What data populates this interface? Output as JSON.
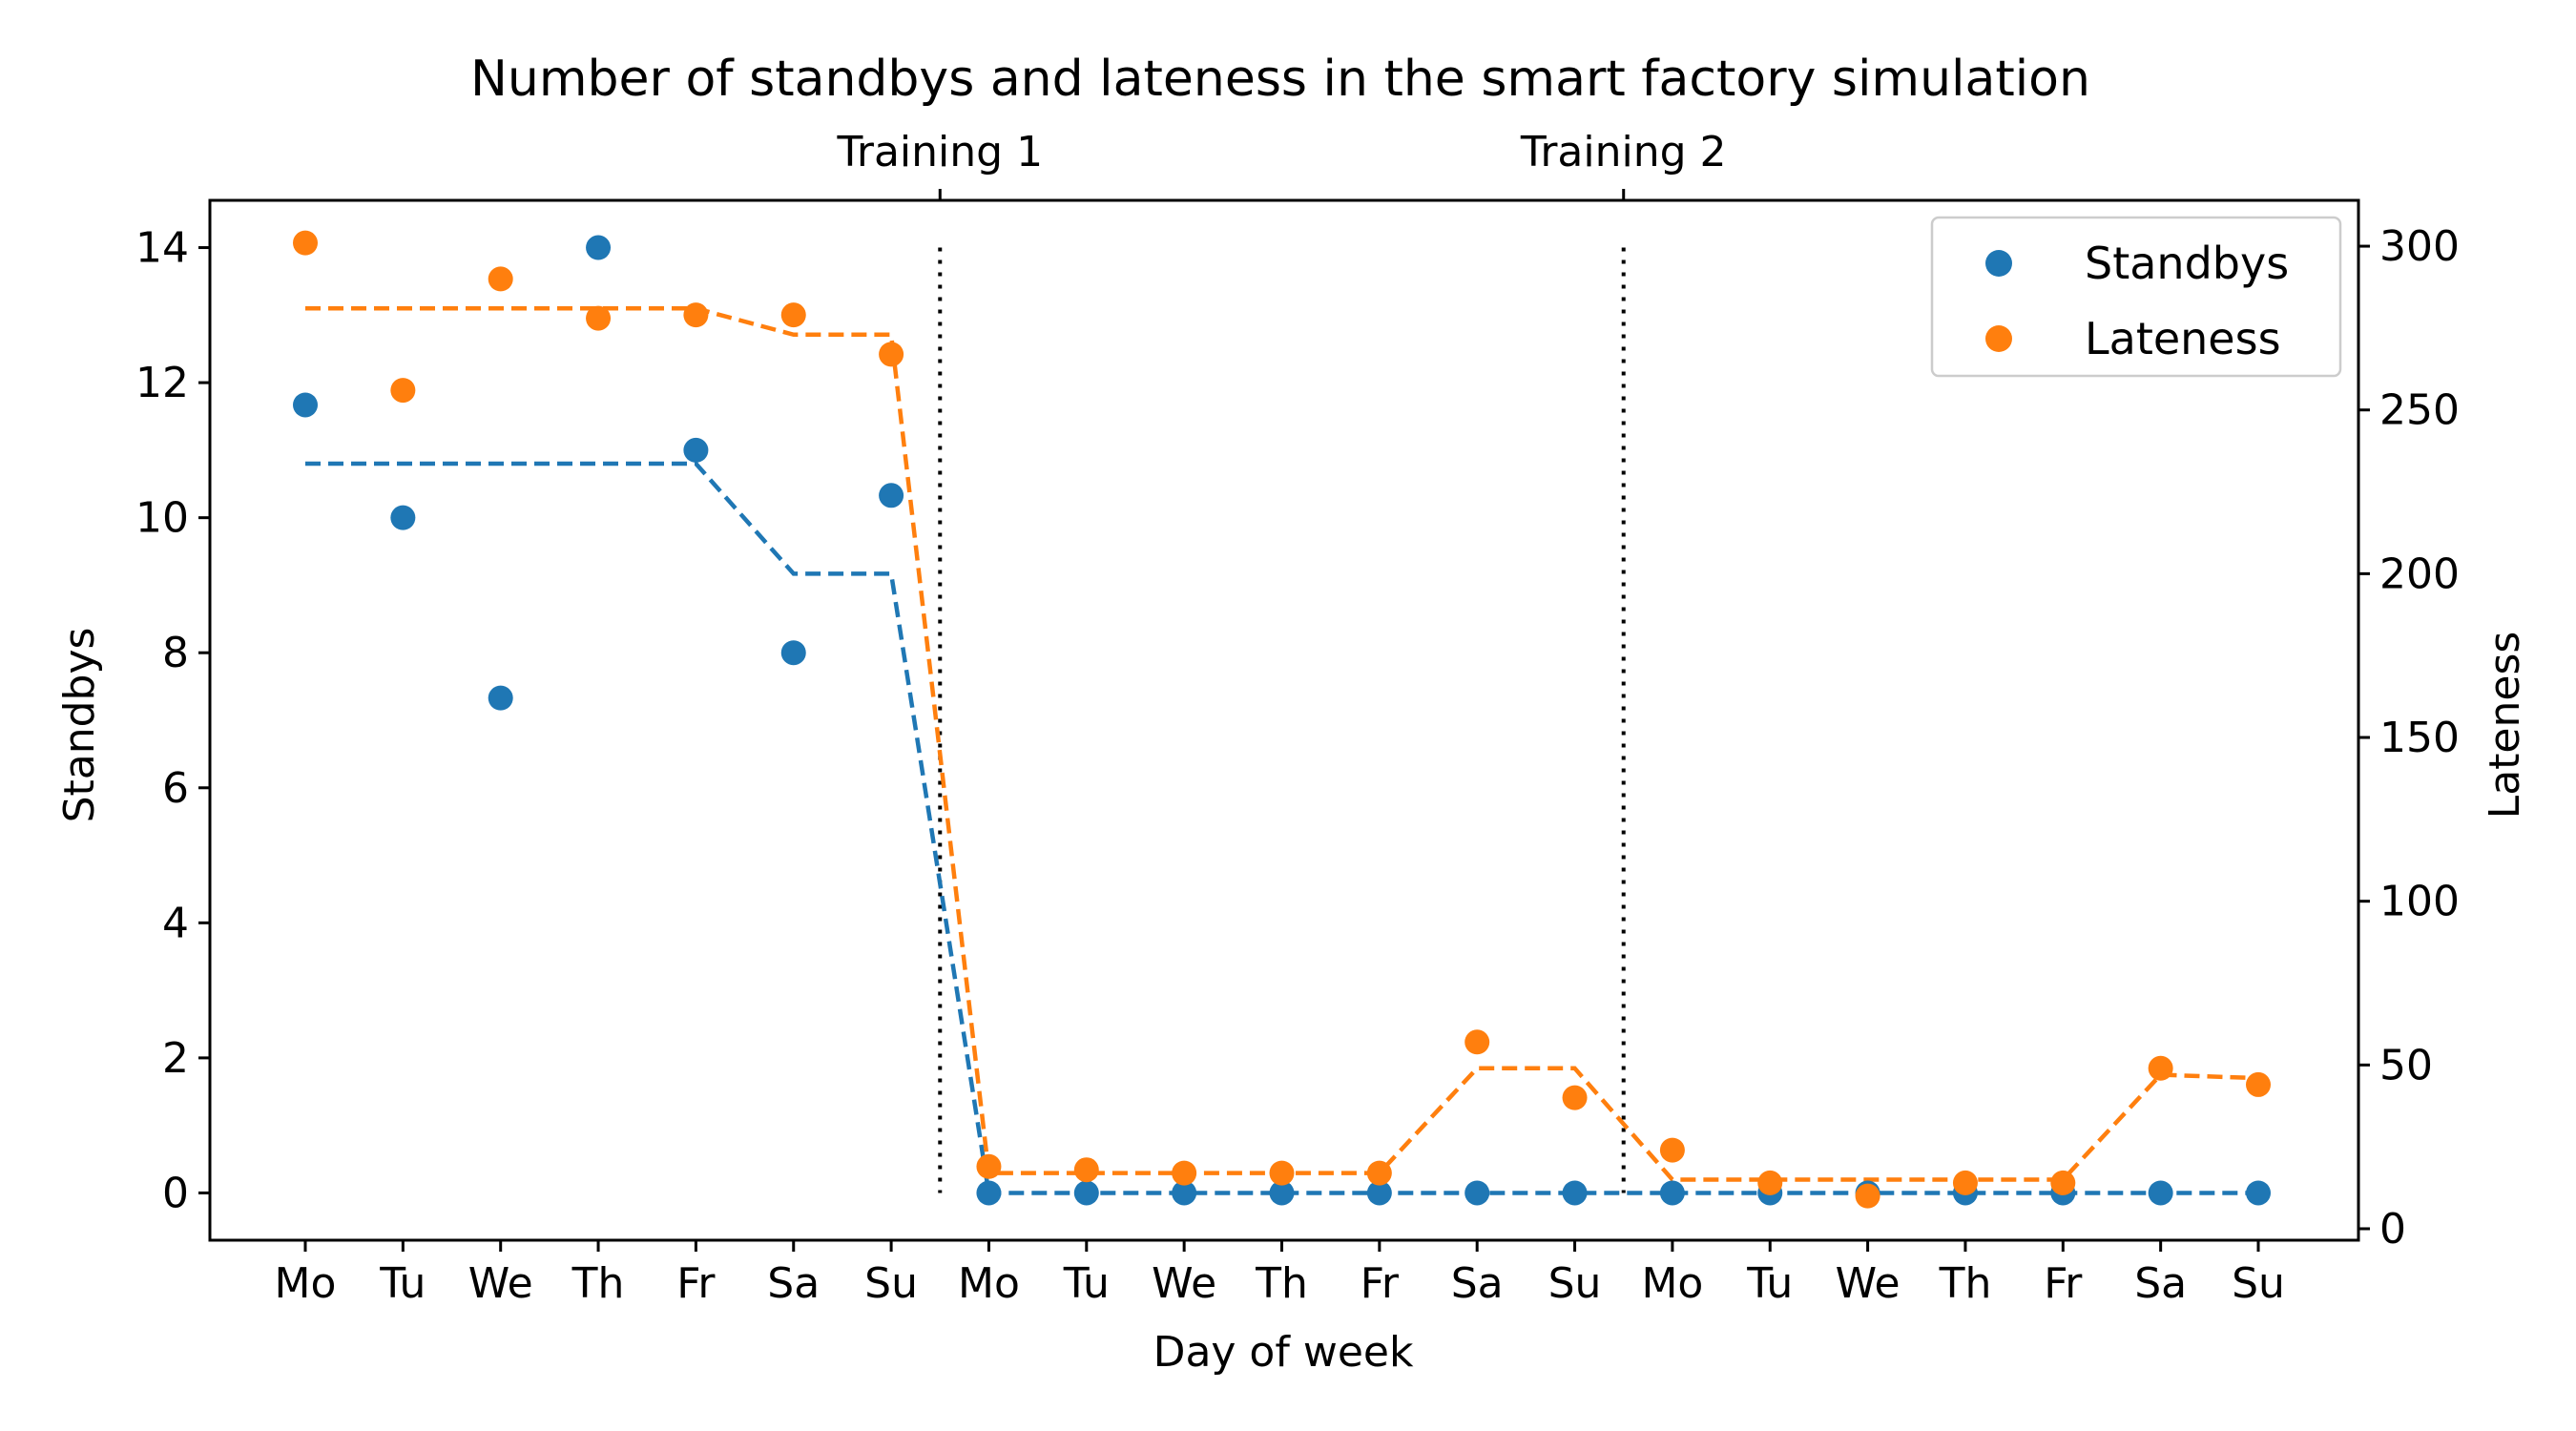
{
  "chart_data": {
    "type": "scatter",
    "title": "Number of standbys and lateness in the smart factory simulation",
    "xlabel": "Day of week",
    "ylabel_left": "Standbys",
    "ylabel_right": "Lateness",
    "categories": [
      "Mo",
      "Tu",
      "We",
      "Th",
      "Fr",
      "Sa",
      "Su",
      "Mo",
      "Tu",
      "We",
      "Th",
      "Fr",
      "Sa",
      "Su",
      "Mo",
      "Tu",
      "We",
      "Th",
      "Fr",
      "Sa",
      "Su"
    ],
    "ylim_left": [
      -0.7,
      14.7
    ],
    "yticks_left": [
      0,
      2,
      4,
      6,
      8,
      10,
      12,
      14
    ],
    "ylim_right": [
      -3.5,
      314
    ],
    "yticks_right": [
      0,
      50,
      100,
      150,
      200,
      250,
      300
    ],
    "top_labels": [
      {
        "text": "Training 1",
        "x": 6.5
      },
      {
        "text": "Training 2",
        "x": 13.5
      }
    ],
    "vlines_at": [
      6.5,
      13.5
    ],
    "vline_style": "dotted",
    "grid": false,
    "legend_position": "top-right",
    "series": [
      {
        "name": "Standbys",
        "axis": "left",
        "color": "#1f77b4",
        "points": [
          11.67,
          10.0,
          7.33,
          14.0,
          11.0,
          8.0,
          10.33,
          0,
          0,
          0,
          0,
          0,
          0,
          0,
          0,
          0,
          0,
          0,
          0,
          0,
          0
        ],
        "trend_x": [
          0,
          4,
          5,
          6,
          7,
          8,
          9,
          10,
          11,
          12,
          13,
          14,
          15,
          16,
          17,
          18,
          19,
          20
        ],
        "trend": [
          10.8,
          10.8,
          9.17,
          9.17,
          0,
          0,
          0,
          0,
          0,
          0,
          0,
          0,
          0,
          0,
          0,
          0,
          0,
          0
        ]
      },
      {
        "name": "Lateness",
        "axis": "right",
        "color": "#ff7f0e",
        "points": [
          301,
          256,
          290,
          278,
          279,
          279,
          267,
          19,
          18,
          17,
          17,
          17,
          57,
          40,
          24,
          14,
          10,
          14,
          14,
          49,
          44
        ],
        "trend_x": [
          0,
          4,
          5,
          6,
          7,
          8,
          9,
          10,
          11,
          12,
          13,
          14,
          15,
          16,
          17,
          18,
          19,
          20
        ],
        "trend": [
          281,
          281,
          273,
          273,
          17,
          17,
          17,
          17,
          17,
          49,
          49,
          15,
          15,
          15,
          15,
          15,
          47,
          46
        ]
      }
    ]
  }
}
